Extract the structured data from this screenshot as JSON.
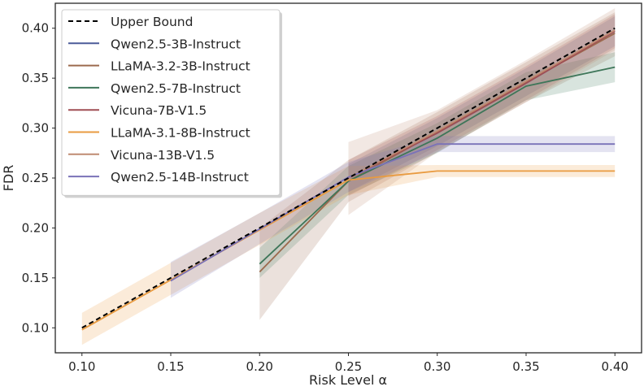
{
  "chart_data": {
    "type": "line",
    "title": "",
    "xlabel": "Risk Level α",
    "ylabel": "FDR",
    "xlim": [
      0.085,
      0.415
    ],
    "ylim": [
      0.075,
      0.425
    ],
    "xticks": [
      "0.10",
      "0.15",
      "0.20",
      "0.25",
      "0.30",
      "0.35",
      "0.40"
    ],
    "yticks": [
      "0.10",
      "0.15",
      "0.20",
      "0.25",
      "0.30",
      "0.35",
      "0.40"
    ],
    "xtick_values": [
      0.1,
      0.15,
      0.2,
      0.25,
      0.3,
      0.35,
      0.4
    ],
    "ytick_values": [
      0.1,
      0.15,
      0.2,
      0.25,
      0.3,
      0.35,
      0.4
    ],
    "grid": false,
    "legend_position": "top-left",
    "series": [
      {
        "name": "Upper Bound",
        "color": "#000000",
        "dashed": true,
        "x": [
          0.1,
          0.4
        ],
        "y": [
          0.1,
          0.4
        ]
      },
      {
        "name": "Qwen2.5-3B-Instruct",
        "color": "#4c5b99",
        "x": [
          0.25,
          0.3,
          0.35,
          0.4
        ],
        "y": [
          0.25,
          0.295,
          0.345,
          0.397
        ],
        "lower": [
          0.236,
          0.282,
          0.332,
          0.382
        ],
        "upper": [
          0.264,
          0.31,
          0.36,
          0.412
        ]
      },
      {
        "name": "LLaMA-3.2-3B-Instruct",
        "color": "#9c6a4e",
        "x": [
          0.2,
          0.25,
          0.3,
          0.35,
          0.4
        ],
        "y": [
          0.156,
          0.247,
          0.296,
          0.346,
          0.395
        ],
        "lower": [
          0.108,
          0.226,
          0.276,
          0.326,
          0.372
        ],
        "upper": [
          0.2,
          0.268,
          0.316,
          0.366,
          0.416
        ]
      },
      {
        "name": "Qwen2.5-7B-Instruct",
        "color": "#3e7659",
        "x": [
          0.2,
          0.25,
          0.3,
          0.35,
          0.4
        ],
        "y": [
          0.164,
          0.247,
          0.29,
          0.342,
          0.361
        ],
        "lower": [
          0.15,
          0.233,
          0.275,
          0.328,
          0.346
        ],
        "upper": [
          0.18,
          0.262,
          0.305,
          0.356,
          0.376
        ]
      },
      {
        "name": "Vicuna-7B-V1.5",
        "color": "#a04f55",
        "x": [
          0.25,
          0.3,
          0.35,
          0.4
        ],
        "y": [
          0.25,
          0.295,
          0.345,
          0.397
        ],
        "lower": [
          0.232,
          0.278,
          0.328,
          0.38
        ],
        "upper": [
          0.268,
          0.312,
          0.362,
          0.414
        ]
      },
      {
        "name": "LLaMA-3.1-8B-Instruct",
        "color": "#e99b40",
        "x": [
          0.1,
          0.15,
          0.2,
          0.25,
          0.3,
          0.35,
          0.4
        ],
        "y": [
          0.098,
          0.148,
          0.198,
          0.248,
          0.257,
          0.257,
          0.257
        ],
        "lower": [
          0.083,
          0.133,
          0.183,
          0.233,
          0.251,
          0.251,
          0.251
        ],
        "upper": [
          0.115,
          0.165,
          0.215,
          0.262,
          0.263,
          0.263,
          0.263
        ]
      },
      {
        "name": "Vicuna-13B-V1.5",
        "color": "#bf8b72",
        "x": [
          0.25,
          0.3,
          0.35,
          0.4
        ],
        "y": [
          0.25,
          0.297,
          0.347,
          0.398
        ],
        "lower": [
          0.213,
          0.276,
          0.326,
          0.378
        ],
        "upper": [
          0.286,
          0.318,
          0.368,
          0.42
        ]
      },
      {
        "name": "Qwen2.5-14B-Instruct",
        "color": "#7a72b8",
        "x": [
          0.15,
          0.2,
          0.25,
          0.3,
          0.35,
          0.4
        ],
        "y": [
          0.147,
          0.199,
          0.251,
          0.284,
          0.284,
          0.284
        ],
        "lower": [
          0.13,
          0.184,
          0.236,
          0.276,
          0.276,
          0.276
        ],
        "upper": [
          0.166,
          0.215,
          0.266,
          0.292,
          0.292,
          0.292
        ]
      }
    ]
  }
}
